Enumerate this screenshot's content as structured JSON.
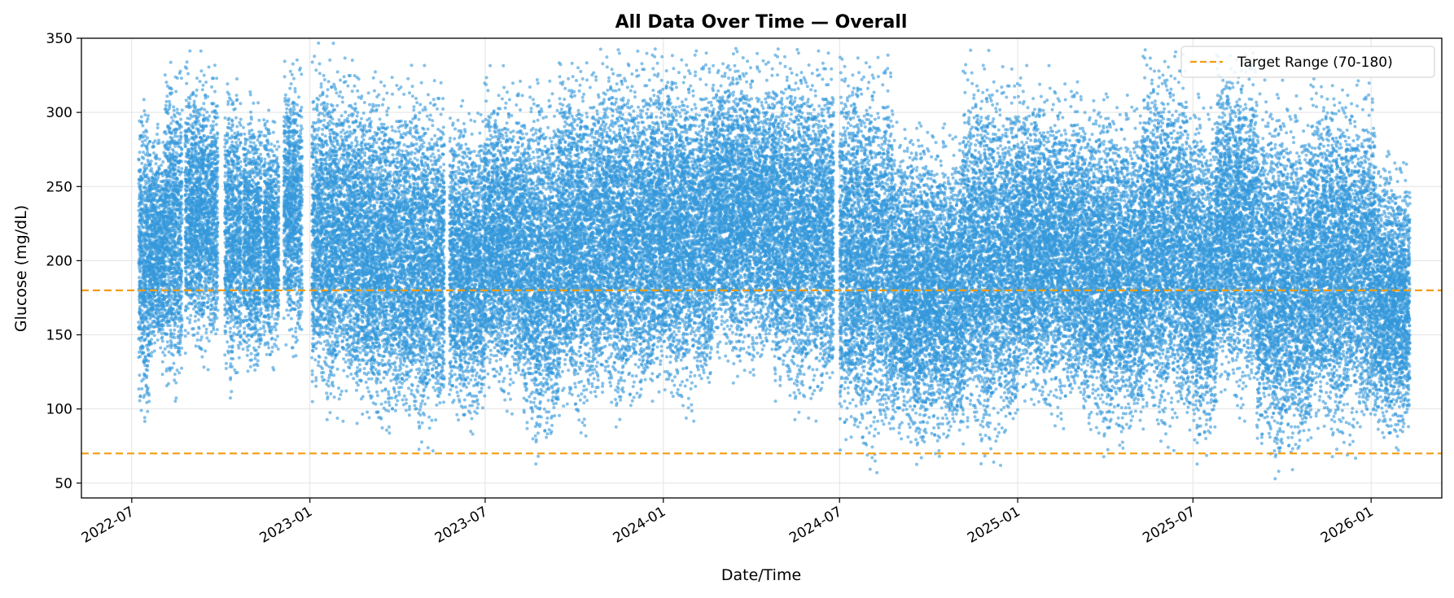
{
  "chart_data": {
    "type": "scatter",
    "title": "All Data Over Time — Overall",
    "xlabel": "Date/Time",
    "ylabel": "Glucose (mg/dL)",
    "xlim": [
      "2022-05-10",
      "2026-03-15"
    ],
    "ylim": [
      40,
      350
    ],
    "grid": true,
    "legend_position": "top-right",
    "x_ticks": [
      "2022-07",
      "2023-01",
      "2023-07",
      "2024-01",
      "2024-07",
      "2025-01",
      "2025-07",
      "2026-01"
    ],
    "y_ticks": [
      50,
      100,
      150,
      200,
      250,
      300,
      350
    ],
    "point_color": "#3498db",
    "target_line_color": "#f39c12",
    "reference_lines": [
      {
        "y": 70,
        "legend": "Target Range (70-180)"
      },
      {
        "y": 180
      }
    ],
    "data_start": "2022-07-08",
    "data_end": "2026-02-10",
    "band_envelope": [
      {
        "start": "2022-07-08",
        "end": "2022-07-20",
        "low": 80,
        "high": 320
      },
      {
        "start": "2022-07-20",
        "end": "2022-08-04",
        "low": 115,
        "high": 300
      },
      {
        "start": "2022-08-04",
        "end": "2022-08-22",
        "low": 95,
        "high": 345
      },
      {
        "start": "2022-08-25",
        "end": "2022-09-28",
        "low": 125,
        "high": 340
      },
      {
        "start": "2022-10-05",
        "end": "2022-10-22",
        "low": 105,
        "high": 330
      },
      {
        "start": "2022-10-24",
        "end": "2022-11-12",
        "low": 110,
        "high": 320
      },
      {
        "start": "2022-11-14",
        "end": "2022-11-30",
        "low": 120,
        "high": 310
      },
      {
        "start": "2022-12-05",
        "end": "2022-12-24",
        "low": 125,
        "high": 345
      },
      {
        "start": "2023-01-03",
        "end": "2023-02-18",
        "low": 90,
        "high": 345
      },
      {
        "start": "2023-02-18",
        "end": "2023-04-10",
        "low": 75,
        "high": 335
      },
      {
        "start": "2023-04-10",
        "end": "2023-05-20",
        "low": 70,
        "high": 330
      },
      {
        "start": "2023-05-25",
        "end": "2023-06-30",
        "low": 75,
        "high": 315
      },
      {
        "start": "2023-06-30",
        "end": "2023-08-10",
        "low": 95,
        "high": 330
      },
      {
        "start": "2023-08-10",
        "end": "2023-09-15",
        "low": 60,
        "high": 330
      },
      {
        "start": "2023-09-15",
        "end": "2023-10-25",
        "low": 80,
        "high": 345
      },
      {
        "start": "2023-10-25",
        "end": "2023-12-20",
        "low": 85,
        "high": 350
      },
      {
        "start": "2023-12-20",
        "end": "2024-02-20",
        "low": 90,
        "high": 350
      },
      {
        "start": "2024-02-20",
        "end": "2024-04-25",
        "low": 115,
        "high": 350
      },
      {
        "start": "2024-04-25",
        "end": "2024-06-25",
        "low": 90,
        "high": 350
      },
      {
        "start": "2024-07-01",
        "end": "2024-08-25",
        "low": 55,
        "high": 350
      },
      {
        "start": "2024-08-25",
        "end": "2024-11-05",
        "low": 60,
        "high": 300
      },
      {
        "start": "2024-11-05",
        "end": "2024-12-31",
        "low": 60,
        "high": 340
      },
      {
        "start": "2024-12-31",
        "end": "2025-03-10",
        "low": 85,
        "high": 330
      },
      {
        "start": "2025-03-10",
        "end": "2025-05-10",
        "low": 65,
        "high": 320
      },
      {
        "start": "2025-05-10",
        "end": "2025-06-25",
        "low": 70,
        "high": 350
      },
      {
        "start": "2025-06-25",
        "end": "2025-07-25",
        "low": 60,
        "high": 320
      },
      {
        "start": "2025-07-25",
        "end": "2025-09-05",
        "low": 90,
        "high": 350
      },
      {
        "start": "2025-09-05",
        "end": "2025-10-30",
        "low": 50,
        "high": 320
      },
      {
        "start": "2025-10-30",
        "end": "2026-01-05",
        "low": 65,
        "high": 330
      },
      {
        "start": "2026-01-05",
        "end": "2026-02-10",
        "low": 65,
        "high": 280
      }
    ]
  }
}
